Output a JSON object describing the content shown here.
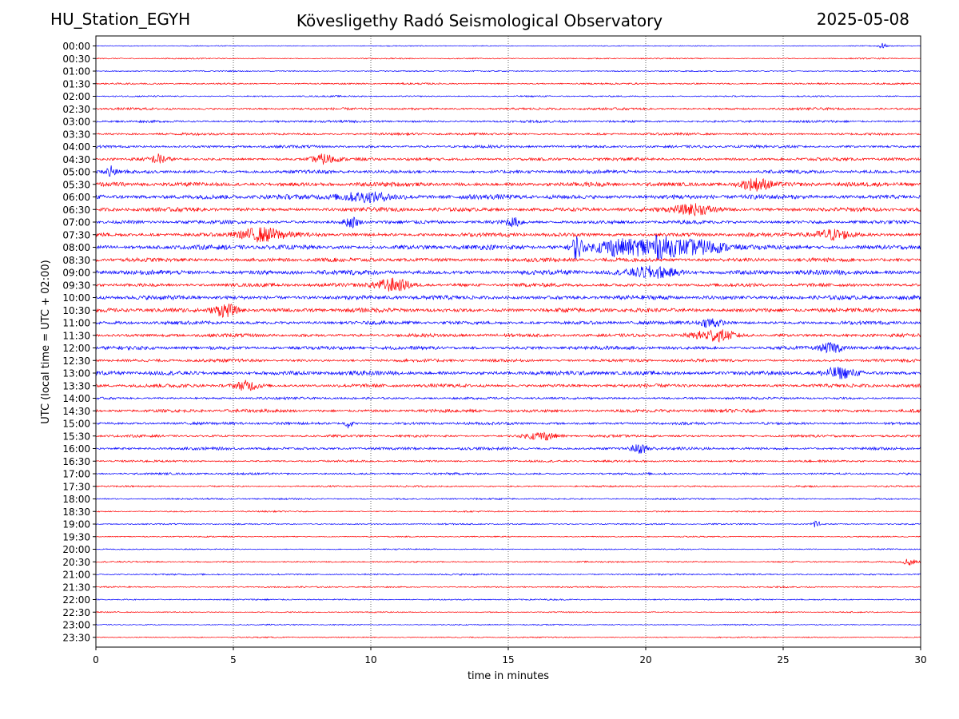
{
  "header": {
    "station": "HU_Station_EGYH",
    "observatory": "Kövesligethy Radó Seismological Observatory",
    "date": "2025-05-08"
  },
  "chart_data": {
    "type": "line",
    "title": "Kövesligethy Radó Seismological Observatory",
    "xlabel": "time in minutes",
    "ylabel": "UTC (local time = UTC + 02:00)",
    "xlim": [
      0,
      30
    ],
    "xticks": [
      0,
      5,
      10,
      15,
      20,
      25,
      30
    ],
    "grid": "vertical dotted lines at x ticks",
    "colors": {
      "even": "#0000ff",
      "odd": "#ff0000"
    },
    "rows": [
      {
        "label": "00:00",
        "amp": 0.04
      },
      {
        "label": "00:30",
        "amp": 0.05
      },
      {
        "label": "01:00",
        "amp": 0.05
      },
      {
        "label": "01:30",
        "amp": 0.07
      },
      {
        "label": "02:00",
        "amp": 0.06
      },
      {
        "label": "02:30",
        "amp": 0.1
      },
      {
        "label": "03:00",
        "amp": 0.1
      },
      {
        "label": "03:30",
        "amp": 0.1
      },
      {
        "label": "04:00",
        "amp": 0.12
      },
      {
        "label": "04:30",
        "amp": 0.13
      },
      {
        "label": "05:00",
        "amp": 0.15
      },
      {
        "label": "05:30",
        "amp": 0.18
      },
      {
        "label": "06:00",
        "amp": 0.2
      },
      {
        "label": "06:30",
        "amp": 0.17
      },
      {
        "label": "07:00",
        "amp": 0.15
      },
      {
        "label": "07:30",
        "amp": 0.17
      },
      {
        "label": "08:00",
        "amp": 0.2
      },
      {
        "label": "08:30",
        "amp": 0.17
      },
      {
        "label": "09:00",
        "amp": 0.2
      },
      {
        "label": "09:30",
        "amp": 0.15
      },
      {
        "label": "10:00",
        "amp": 0.18
      },
      {
        "label": "10:30",
        "amp": 0.18
      },
      {
        "label": "11:00",
        "amp": 0.15
      },
      {
        "label": "11:30",
        "amp": 0.15
      },
      {
        "label": "12:00",
        "amp": 0.15
      },
      {
        "label": "12:30",
        "amp": 0.13
      },
      {
        "label": "13:00",
        "amp": 0.18
      },
      {
        "label": "13:30",
        "amp": 0.15
      },
      {
        "label": "14:00",
        "amp": 0.1
      },
      {
        "label": "14:30",
        "amp": 0.14
      },
      {
        "label": "15:00",
        "amp": 0.12
      },
      {
        "label": "15:30",
        "amp": 0.1
      },
      {
        "label": "16:00",
        "amp": 0.12
      },
      {
        "label": "16:30",
        "amp": 0.09
      },
      {
        "label": "17:00",
        "amp": 0.09
      },
      {
        "label": "17:30",
        "amp": 0.07
      },
      {
        "label": "18:00",
        "amp": 0.07
      },
      {
        "label": "18:30",
        "amp": 0.06
      },
      {
        "label": "19:00",
        "amp": 0.06
      },
      {
        "label": "19:30",
        "amp": 0.05
      },
      {
        "label": "20:00",
        "amp": 0.05
      },
      {
        "label": "20:30",
        "amp": 0.06
      },
      {
        "label": "21:00",
        "amp": 0.07
      },
      {
        "label": "21:30",
        "amp": 0.06
      },
      {
        "label": "22:00",
        "amp": 0.06
      },
      {
        "label": "22:30",
        "amp": 0.05
      },
      {
        "label": "23:00",
        "amp": 0.05
      },
      {
        "label": "23:30",
        "amp": 0.05
      }
    ],
    "events": [
      {
        "row": "00:00",
        "t": 28.6,
        "amp": 0.2,
        "dur": 0.2
      },
      {
        "row": "04:30",
        "t": 2.3,
        "amp": 0.35,
        "dur": 0.4
      },
      {
        "row": "04:30",
        "t": 8.3,
        "amp": 0.35,
        "dur": 0.6
      },
      {
        "row": "05:00",
        "t": 0.55,
        "amp": 0.5,
        "dur": 0.2
      },
      {
        "row": "05:30",
        "t": 24.0,
        "amp": 0.45,
        "dur": 0.8
      },
      {
        "row": "06:00",
        "t": 9.8,
        "amp": 0.35,
        "dur": 1.5
      },
      {
        "row": "06:30",
        "t": 21.8,
        "amp": 0.4,
        "dur": 1.0
      },
      {
        "row": "07:00",
        "t": 9.3,
        "amp": 0.4,
        "dur": 0.4
      },
      {
        "row": "07:00",
        "t": 15.2,
        "amp": 0.3,
        "dur": 0.5
      },
      {
        "row": "07:30",
        "t": 6.0,
        "amp": 0.5,
        "dur": 1.2
      },
      {
        "row": "07:30",
        "t": 26.8,
        "amp": 0.4,
        "dur": 1.0
      },
      {
        "row": "08:00",
        "t": 17.5,
        "amp": 0.9,
        "dur": 0.3
      },
      {
        "row": "08:00",
        "t": 18.8,
        "amp": 0.6,
        "dur": 1.0
      },
      {
        "row": "08:00",
        "t": 20.3,
        "amp": 0.8,
        "dur": 1.2
      },
      {
        "row": "08:00",
        "t": 22.0,
        "amp": 0.45,
        "dur": 1.5
      },
      {
        "row": "09:00",
        "t": 20.3,
        "amp": 0.4,
        "dur": 1.2
      },
      {
        "row": "09:30",
        "t": 10.8,
        "amp": 0.5,
        "dur": 0.9
      },
      {
        "row": "10:30",
        "t": 4.7,
        "amp": 0.5,
        "dur": 0.6
      },
      {
        "row": "11:00",
        "t": 22.4,
        "amp": 0.4,
        "dur": 0.5
      },
      {
        "row": "11:30",
        "t": 22.5,
        "amp": 0.4,
        "dur": 1.0
      },
      {
        "row": "12:00",
        "t": 26.8,
        "amp": 0.35,
        "dur": 0.6
      },
      {
        "row": "13:00",
        "t": 27.0,
        "amp": 0.35,
        "dur": 0.8
      },
      {
        "row": "13:30",
        "t": 5.5,
        "amp": 0.35,
        "dur": 0.6
      },
      {
        "row": "15:00",
        "t": 9.2,
        "amp": 0.35,
        "dur": 0.2
      },
      {
        "row": "15:30",
        "t": 16.2,
        "amp": 0.3,
        "dur": 0.8
      },
      {
        "row": "16:00",
        "t": 19.8,
        "amp": 0.35,
        "dur": 0.5
      },
      {
        "row": "19:00",
        "t": 26.2,
        "amp": 0.4,
        "dur": 0.2
      },
      {
        "row": "20:30",
        "t": 29.6,
        "amp": 0.3,
        "dur": 0.3
      }
    ]
  }
}
